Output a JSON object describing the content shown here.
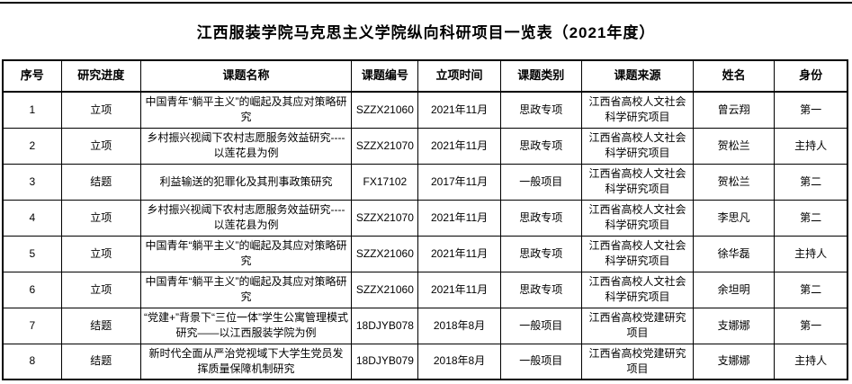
{
  "page": {
    "title": "江西服装学院马克思主义学院纵向科研项目一览表（2021年度）"
  },
  "table": {
    "headers": [
      "序号",
      "研究进度",
      "课题名称",
      "课题编号",
      "立项时间",
      "课题类别",
      "课题来源",
      "姓名",
      "身份"
    ],
    "rows": [
      [
        "1",
        "立项",
        "中国青年“躺平主义”的崛起及其应对策略研究",
        "SZZX21060",
        "2021年11月",
        "思政专项",
        "江西省高校人文社会科学研究项目",
        "曾云翔",
        "第一"
      ],
      [
        "2",
        "立项",
        "乡村振兴视阈下农村志愿服务效益研究----以莲花县为例",
        "SZZX21070",
        "2021年11月",
        "思政专项",
        "江西省高校人文社会科学研究项目",
        "贺松兰",
        "主持人"
      ],
      [
        "3",
        "结题",
        "利益输送的犯罪化及其刑事政策研究",
        "FX17102",
        "2017年11月",
        "一般项目",
        "江西省高校人文社会科学研究项目",
        "贺松兰",
        "第二"
      ],
      [
        "4",
        "立项",
        "乡村振兴视阈下农村志愿服务效益研究----以莲花县为例",
        "SZZX21070",
        "2021年11月",
        "思政专项",
        "江西省高校人文社会科学研究项目",
        "李思凡",
        "第二"
      ],
      [
        "5",
        "立项",
        "中国青年“躺平主义”的崛起及其应对策略研究",
        "SZZX21060",
        "2021年11月",
        "思政专项",
        "江西省高校人文社会科学研究项目",
        "徐华磊",
        "主持人"
      ],
      [
        "6",
        "立项",
        "中国青年“躺平主义”的崛起及其应对策略研究",
        "SZZX21060",
        "2021年11月",
        "思政专项",
        "江西省高校人文社会科学研究项目",
        "余坦明",
        "第二"
      ],
      [
        "7",
        "结题",
        "“党建+”背景下“三位一体”学生公寓管理模式研究――以江西服装学院为例",
        "18DJYB078",
        "2018年8月",
        "一般项目",
        "江西省高校党建研究项目",
        "支娜娜",
        "第一"
      ],
      [
        "8",
        "结题",
        "新时代全面从严治党视域下大学生党员发挥质量保障机制研究",
        "18DJYB079",
        "2018年8月",
        "一般项目",
        "江西省高校党建研究项目",
        "支娜娜",
        "主持人"
      ]
    ]
  },
  "colors": {
    "background": "#ffffff",
    "text": "#000000",
    "border": "#000000"
  }
}
